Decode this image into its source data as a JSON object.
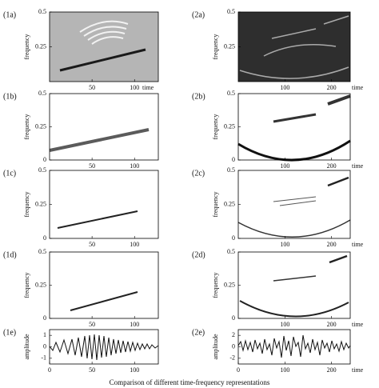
{
  "caption": "Comparison of different time-frequency representations",
  "panels": [
    {
      "label": "(1a)",
      "ylabel": "frequency",
      "xlabel": "time",
      "xlim": [
        0,
        128
      ],
      "ylim": [
        0,
        0.5
      ],
      "xticks": [
        50,
        100
      ],
      "yticks": [
        0.25,
        0.5
      ]
    },
    {
      "label": "(2a)",
      "ylabel": "frequency",
      "xlabel": "time",
      "xlim": [
        0,
        240
      ],
      "ylim": [
        0,
        0.5
      ],
      "xticks": [
        100,
        200
      ],
      "yticks": [
        0.25,
        0.5
      ]
    },
    {
      "label": "(1b)",
      "ylabel": "frequency",
      "xlim": [
        0,
        128
      ],
      "ylim": [
        0,
        0.5
      ],
      "xticks": [
        50,
        100
      ],
      "yticks": [
        0,
        0.25,
        0.5
      ]
    },
    {
      "label": "(2b)",
      "ylabel": "frequency",
      "xlabel": "time",
      "xlim": [
        0,
        240
      ],
      "ylim": [
        0,
        0.5
      ],
      "xticks": [
        100,
        200
      ],
      "yticks": [
        0,
        0.25,
        0.5
      ]
    },
    {
      "label": "(1c)",
      "ylabel": "frequency",
      "xlim": [
        0,
        128
      ],
      "ylim": [
        0,
        0.5
      ],
      "xticks": [
        50,
        100
      ],
      "yticks": [
        0,
        0.25,
        0.5
      ]
    },
    {
      "label": "(2c)",
      "ylabel": "frequency",
      "xlabel": "time",
      "xlim": [
        0,
        240
      ],
      "ylim": [
        0,
        0.5
      ],
      "xticks": [
        100,
        200
      ],
      "yticks": [
        0,
        0.25,
        0.5
      ]
    },
    {
      "label": "(1d)",
      "ylabel": "frequency",
      "xlim": [
        0,
        128
      ],
      "ylim": [
        0,
        0.5
      ],
      "xticks": [
        50,
        100
      ],
      "yticks": [
        0,
        0.25,
        0.5
      ]
    },
    {
      "label": "(2d)",
      "ylabel": "frequency",
      "xlabel": "time",
      "xlim": [
        0,
        240
      ],
      "ylim": [
        0,
        0.5
      ],
      "xticks": [
        100,
        200
      ],
      "yticks": [
        0,
        0.25,
        0.5
      ]
    },
    {
      "label": "(1e)",
      "ylabel": "amplitude",
      "xlim": [
        0,
        128
      ],
      "ylim": [
        -1.5,
        1.5
      ],
      "xticks": [
        0,
        50,
        100
      ],
      "yticks": [
        -1,
        0,
        1
      ]
    },
    {
      "label": "(2e)",
      "ylabel": "amplitude",
      "xlabel": "time",
      "xlim": [
        0,
        240
      ],
      "ylim": [
        -3,
        3
      ],
      "xticks": [
        0,
        100,
        200
      ],
      "yticks": [
        -2,
        0,
        2
      ]
    }
  ]
}
